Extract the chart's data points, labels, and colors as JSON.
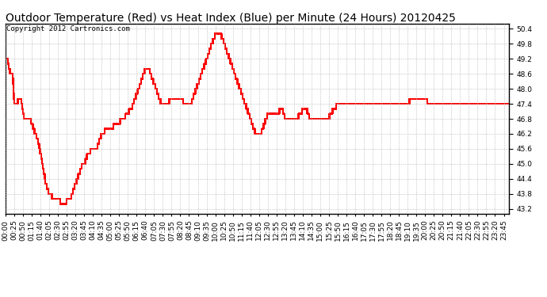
{
  "title": "Outdoor Temperature (Red) vs Heat Index (Blue) per Minute (24 Hours) 20120425",
  "copyright": "Copyright 2012 Cartronics.com",
  "ylim": [
    43.0,
    50.6
  ],
  "yticks": [
    43.2,
    43.8,
    44.4,
    45.0,
    45.6,
    46.2,
    46.8,
    47.4,
    48.0,
    48.6,
    49.2,
    49.8,
    50.4
  ],
  "line_color_red": "#ff0000",
  "bg_color": "#ffffff",
  "grid_color": "#b0b0b0",
  "title_fontsize": 10,
  "copyright_fontsize": 6.5,
  "tick_fontsize": 6.5,
  "keypoints": [
    [
      0,
      49.2
    ],
    [
      5,
      49.2
    ],
    [
      10,
      48.8
    ],
    [
      15,
      48.6
    ],
    [
      20,
      48.6
    ],
    [
      25,
      47.4
    ],
    [
      30,
      47.4
    ],
    [
      35,
      47.5
    ],
    [
      40,
      47.6
    ],
    [
      45,
      47.6
    ],
    [
      50,
      47.0
    ],
    [
      55,
      46.8
    ],
    [
      60,
      46.8
    ],
    [
      65,
      46.8
    ],
    [
      70,
      46.8
    ],
    [
      75,
      46.6
    ],
    [
      80,
      46.4
    ],
    [
      85,
      46.2
    ],
    [
      90,
      46.0
    ],
    [
      95,
      45.8
    ],
    [
      100,
      45.4
    ],
    [
      105,
      45.0
    ],
    [
      110,
      44.6
    ],
    [
      115,
      44.2
    ],
    [
      120,
      44.0
    ],
    [
      125,
      43.8
    ],
    [
      130,
      43.8
    ],
    [
      135,
      43.6
    ],
    [
      140,
      43.6
    ],
    [
      145,
      43.5
    ],
    [
      150,
      43.5
    ],
    [
      155,
      43.5
    ],
    [
      160,
      43.4
    ],
    [
      165,
      43.4
    ],
    [
      170,
      43.4
    ],
    [
      175,
      43.5
    ],
    [
      180,
      43.5
    ],
    [
      185,
      43.6
    ],
    [
      190,
      43.8
    ],
    [
      195,
      44.0
    ],
    [
      200,
      44.2
    ],
    [
      205,
      44.4
    ],
    [
      210,
      44.6
    ],
    [
      215,
      44.8
    ],
    [
      220,
      45.0
    ],
    [
      225,
      45.0
    ],
    [
      230,
      45.2
    ],
    [
      235,
      45.4
    ],
    [
      240,
      45.4
    ],
    [
      245,
      45.6
    ],
    [
      250,
      45.6
    ],
    [
      255,
      45.6
    ],
    [
      260,
      45.6
    ],
    [
      265,
      45.8
    ],
    [
      270,
      46.0
    ],
    [
      275,
      46.2
    ],
    [
      280,
      46.2
    ],
    [
      285,
      46.4
    ],
    [
      290,
      46.4
    ],
    [
      295,
      46.4
    ],
    [
      300,
      46.4
    ],
    [
      305,
      46.4
    ],
    [
      310,
      46.6
    ],
    [
      315,
      46.6
    ],
    [
      320,
      46.6
    ],
    [
      325,
      46.6
    ],
    [
      330,
      46.8
    ],
    [
      335,
      46.8
    ],
    [
      340,
      46.8
    ],
    [
      345,
      47.0
    ],
    [
      350,
      47.0
    ],
    [
      355,
      47.2
    ],
    [
      360,
      47.2
    ],
    [
      365,
      47.4
    ],
    [
      370,
      47.6
    ],
    [
      375,
      47.8
    ],
    [
      380,
      48.0
    ],
    [
      385,
      48.2
    ],
    [
      390,
      48.4
    ],
    [
      395,
      48.6
    ],
    [
      400,
      48.8
    ],
    [
      405,
      48.8
    ],
    [
      410,
      48.8
    ],
    [
      415,
      48.6
    ],
    [
      420,
      48.4
    ],
    [
      425,
      48.2
    ],
    [
      430,
      48.0
    ],
    [
      435,
      47.8
    ],
    [
      440,
      47.6
    ],
    [
      445,
      47.4
    ],
    [
      450,
      47.4
    ],
    [
      455,
      47.4
    ],
    [
      460,
      47.4
    ],
    [
      465,
      47.4
    ],
    [
      470,
      47.6
    ],
    [
      475,
      47.6
    ],
    [
      480,
      47.6
    ],
    [
      485,
      47.6
    ],
    [
      490,
      47.6
    ],
    [
      495,
      47.6
    ],
    [
      500,
      47.6
    ],
    [
      505,
      47.6
    ],
    [
      510,
      47.4
    ],
    [
      515,
      47.4
    ],
    [
      520,
      47.4
    ],
    [
      525,
      47.4
    ],
    [
      530,
      47.4
    ],
    [
      535,
      47.6
    ],
    [
      540,
      47.8
    ],
    [
      545,
      48.0
    ],
    [
      550,
      48.2
    ],
    [
      555,
      48.4
    ],
    [
      560,
      48.6
    ],
    [
      565,
      48.8
    ],
    [
      570,
      49.0
    ],
    [
      575,
      49.2
    ],
    [
      580,
      49.4
    ],
    [
      585,
      49.6
    ],
    [
      590,
      49.8
    ],
    [
      595,
      50.0
    ],
    [
      600,
      50.2
    ],
    [
      605,
      50.2
    ],
    [
      610,
      50.2
    ],
    [
      615,
      50.2
    ],
    [
      620,
      50.0
    ],
    [
      625,
      49.8
    ],
    [
      630,
      49.6
    ],
    [
      635,
      49.4
    ],
    [
      640,
      49.2
    ],
    [
      645,
      49.0
    ],
    [
      650,
      48.8
    ],
    [
      655,
      48.6
    ],
    [
      660,
      48.4
    ],
    [
      665,
      48.2
    ],
    [
      670,
      48.0
    ],
    [
      675,
      47.8
    ],
    [
      680,
      47.6
    ],
    [
      685,
      47.4
    ],
    [
      690,
      47.2
    ],
    [
      695,
      47.0
    ],
    [
      700,
      46.8
    ],
    [
      705,
      46.6
    ],
    [
      710,
      46.4
    ],
    [
      715,
      46.2
    ],
    [
      720,
      46.2
    ],
    [
      725,
      46.2
    ],
    [
      730,
      46.2
    ],
    [
      735,
      46.4
    ],
    [
      740,
      46.6
    ],
    [
      745,
      46.8
    ],
    [
      750,
      47.0
    ],
    [
      755,
      47.0
    ],
    [
      760,
      47.0
    ],
    [
      765,
      47.0
    ],
    [
      770,
      47.0
    ],
    [
      775,
      47.0
    ],
    [
      780,
      47.0
    ],
    [
      785,
      47.2
    ],
    [
      790,
      47.2
    ],
    [
      795,
      47.0
    ],
    [
      800,
      46.8
    ],
    [
      805,
      46.8
    ],
    [
      810,
      46.8
    ],
    [
      815,
      46.8
    ],
    [
      820,
      46.8
    ],
    [
      825,
      46.8
    ],
    [
      830,
      46.8
    ],
    [
      835,
      46.8
    ],
    [
      840,
      47.0
    ],
    [
      845,
      47.0
    ],
    [
      850,
      47.2
    ],
    [
      855,
      47.2
    ],
    [
      860,
      47.2
    ],
    [
      865,
      47.0
    ],
    [
      870,
      46.8
    ],
    [
      875,
      46.8
    ],
    [
      880,
      46.8
    ],
    [
      885,
      46.8
    ],
    [
      890,
      46.8
    ],
    [
      895,
      46.8
    ],
    [
      900,
      46.8
    ],
    [
      905,
      46.8
    ],
    [
      910,
      46.8
    ],
    [
      915,
      46.8
    ],
    [
      920,
      46.8
    ],
    [
      930,
      47.0
    ],
    [
      940,
      47.2
    ],
    [
      950,
      47.4
    ],
    [
      960,
      47.4
    ],
    [
      970,
      47.4
    ],
    [
      980,
      47.4
    ],
    [
      990,
      47.4
    ],
    [
      1000,
      47.4
    ],
    [
      1010,
      47.4
    ],
    [
      1020,
      47.4
    ],
    [
      1030,
      47.4
    ],
    [
      1040,
      47.4
    ],
    [
      1050,
      47.4
    ],
    [
      1060,
      47.4
    ],
    [
      1070,
      47.4
    ],
    [
      1080,
      47.4
    ],
    [
      1090,
      47.4
    ],
    [
      1100,
      47.4
    ],
    [
      1110,
      47.4
    ],
    [
      1120,
      47.4
    ],
    [
      1130,
      47.4
    ],
    [
      1140,
      47.4
    ],
    [
      1150,
      47.4
    ],
    [
      1160,
      47.6
    ],
    [
      1170,
      47.6
    ],
    [
      1180,
      47.6
    ],
    [
      1190,
      47.6
    ],
    [
      1200,
      47.6
    ],
    [
      1210,
      47.4
    ],
    [
      1220,
      47.4
    ],
    [
      1230,
      47.4
    ],
    [
      1240,
      47.4
    ],
    [
      1250,
      47.4
    ],
    [
      1260,
      47.4
    ],
    [
      1270,
      47.4
    ],
    [
      1280,
      47.4
    ],
    [
      1290,
      47.4
    ],
    [
      1300,
      47.4
    ],
    [
      1310,
      47.4
    ],
    [
      1320,
      47.4
    ],
    [
      1330,
      47.4
    ],
    [
      1340,
      47.4
    ],
    [
      1350,
      47.4
    ],
    [
      1360,
      47.4
    ],
    [
      1370,
      47.4
    ],
    [
      1380,
      47.4
    ],
    [
      1390,
      47.4
    ],
    [
      1400,
      47.4
    ],
    [
      1410,
      47.4
    ],
    [
      1420,
      47.4
    ],
    [
      1430,
      47.4
    ],
    [
      1439,
      47.4
    ]
  ]
}
